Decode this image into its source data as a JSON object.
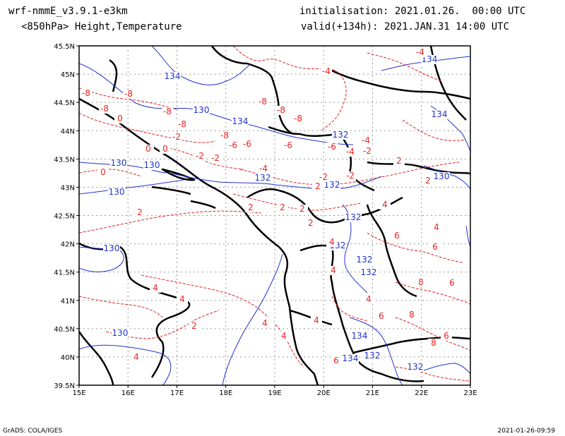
{
  "header": {
    "model": "wrf-nmmE_v3.9.1-e3km",
    "field": "<850hPa> Height,Temperature",
    "init": "initialisation: 2021.01.26.  00:00 UTC",
    "valid": "valid(+134h): 2021.JAN.31 14:00 UTC"
  },
  "footer": {
    "left": "GrADS: COLA/IGES",
    "right": "2021-01-26-09:59"
  },
  "map": {
    "lon_ticks": [
      "15E",
      "16E",
      "17E",
      "18E",
      "19E",
      "20E",
      "21E",
      "22E",
      "23E"
    ],
    "lat_ticks": [
      "45.5N",
      "45N",
      "44.5N",
      "44N",
      "43.5N",
      "43N",
      "42.5N",
      "42N",
      "41.5N",
      "41N",
      "40.5N",
      "40N",
      "39.5N"
    ],
    "colors": {
      "temperature": "#e22222",
      "height": "#2233cc",
      "coast": "#000000",
      "grid": "#999999"
    },
    "height_labels": [
      "134",
      "130",
      "134",
      "134",
      "132",
      "130",
      "130",
      "132",
      "132",
      "130",
      "130",
      "132",
      "132",
      "132",
      "130",
      "134",
      "132",
      "134",
      "134",
      "132",
      "130",
      "132"
    ],
    "temp_labels": [
      "-4",
      "-4",
      "-4",
      "-8",
      "-8",
      "-8",
      "-8",
      "-8",
      "-8",
      "-8",
      "-8",
      "-8",
      "-6",
      "-6",
      "-6",
      "-6",
      "-4",
      "-4",
      "-2",
      "-2",
      "-2",
      "-2",
      "-2",
      "-2",
      "0",
      "0",
      "0",
      "0",
      "2",
      "2",
      "2",
      "2",
      "2",
      "2",
      "2",
      "2",
      "2",
      "4",
      "4",
      "4",
      "4",
      "4",
      "4",
      "4",
      "4",
      "4",
      "4",
      "4",
      "6",
      "6",
      "6",
      "6",
      "6",
      "6",
      "8",
      "8",
      "8"
    ]
  }
}
